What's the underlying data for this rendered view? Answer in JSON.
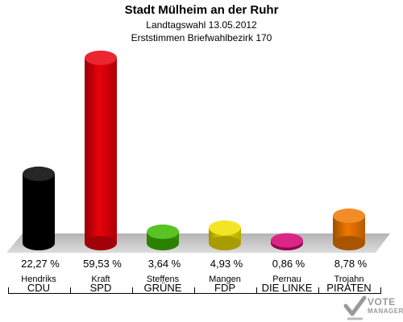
{
  "header": {
    "title": "Stadt Mülheim an der Ruhr",
    "subtitle": "Landtagswahl 13.05.2012",
    "subtitle2": "Erststimmen Briefwahlbezirk 170"
  },
  "chart_data": {
    "type": "bar",
    "categories": [
      "CDU",
      "SPD",
      "GRÜNE",
      "FDP",
      "DIE LINKE",
      "PIRATEN"
    ],
    "candidates": [
      "Hendriks",
      "Kraft",
      "Steffens",
      "Mangen",
      "Pernau",
      "Trojahn"
    ],
    "values": [
      22.27,
      59.53,
      3.64,
      4.93,
      0.86,
      8.78
    ],
    "value_labels": [
      "22,27 %",
      "59,53 %",
      "3,64 %",
      "4,93 %",
      "0,86 %",
      "8,78 %"
    ],
    "colors": [
      "#000000",
      "#e8000b",
      "#3cb800",
      "#f0e000",
      "#d4006e",
      "#f07800"
    ],
    "ylim": [
      0,
      60
    ],
    "grid": false
  },
  "logo": {
    "line1": "VOTE",
    "line2": "MANAGER"
  }
}
